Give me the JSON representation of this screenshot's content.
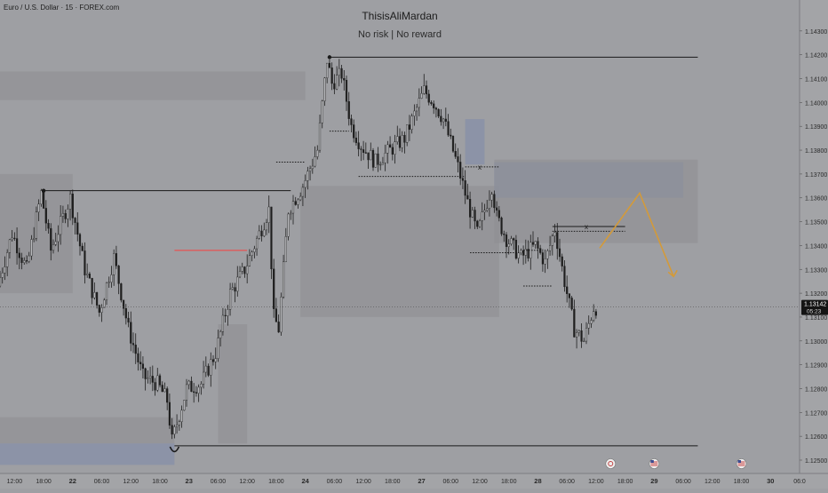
{
  "header": {
    "symbol": "Euro / U.S. Dollar · 15 · FOREX.com",
    "author": "ThisisAliMardan",
    "subtitle": "No risk | No reward"
  },
  "price_tag": {
    "price": "1.13142",
    "countdown": "05:23"
  },
  "colors": {
    "background": "#9e9fa3",
    "zone_gray": "#8f9093",
    "zone_blue": "#8890a8",
    "candle": "#1e1e1e",
    "arrow": "#d39a3a",
    "red_line": "#e05a5a"
  },
  "events": [
    {
      "icon": "economic-event-icon",
      "day_label": "28"
    },
    {
      "icon": "us-flag-event-icon",
      "day_label": "29"
    },
    {
      "icon": "us-flag-event-icon",
      "day_label": "30"
    }
  ],
  "chart_data": {
    "type": "candlestick",
    "title": "",
    "y_axis": {
      "min": 1.125,
      "max": 1.144,
      "ticks": [
        "1.14300",
        "1.14200",
        "1.14100",
        "1.14000",
        "1.13900",
        "1.13800",
        "1.13700",
        "1.13600",
        "1.13500",
        "1.13400",
        "1.13300",
        "1.13200",
        "1.13100",
        "1.13000",
        "1.12900",
        "1.12800",
        "1.12700",
        "1.12600",
        "1.12500"
      ]
    },
    "x_axis": {
      "start": "21 09:00",
      "end": "30 06:00",
      "ticks": [
        {
          "label": "12:00",
          "t": "21 12:00"
        },
        {
          "label": "18:00",
          "t": "21 18:00"
        },
        {
          "label": "22",
          "t": "22 00:00"
        },
        {
          "label": "06:00",
          "t": "22 06:00"
        },
        {
          "label": "12:00",
          "t": "22 12:00"
        },
        {
          "label": "18:00",
          "t": "22 18:00"
        },
        {
          "label": "23",
          "t": "23 00:00"
        },
        {
          "label": "06:00",
          "t": "23 06:00"
        },
        {
          "label": "12:00",
          "t": "23 12:00"
        },
        {
          "label": "18:00",
          "t": "23 18:00"
        },
        {
          "label": "24",
          "t": "24 00:00"
        },
        {
          "label": "06:00",
          "t": "24 06:00"
        },
        {
          "label": "12:00",
          "t": "24 12:00"
        },
        {
          "label": "18:00",
          "t": "24 18:00"
        },
        {
          "label": "27",
          "t": "27 00:00"
        },
        {
          "label": "06:00",
          "t": "27 06:00"
        },
        {
          "label": "12:00",
          "t": "27 12:00"
        },
        {
          "label": "18:00",
          "t": "27 18:00"
        },
        {
          "label": "28",
          "t": "28 00:00"
        },
        {
          "label": "06:00",
          "t": "28 06:00"
        },
        {
          "label": "12:00",
          "t": "28 12:00"
        },
        {
          "label": "18:00",
          "t": "28 18:00"
        },
        {
          "label": "29",
          "t": "29 00:00"
        },
        {
          "label": "06:00",
          "t": "29 06:00"
        },
        {
          "label": "12:00",
          "t": "29 12:00"
        },
        {
          "label": "18:00",
          "t": "29 18:00"
        },
        {
          "label": "30",
          "t": "30 00:00"
        },
        {
          "label": "06:0",
          "t": "30 06:00"
        }
      ]
    },
    "price_path": [
      [
        "21 09:00",
        1.1323
      ],
      [
        "21 12:00",
        1.1345
      ],
      [
        "21 15:00",
        1.133
      ],
      [
        "21 18:00",
        1.1362
      ],
      [
        "21 20:00",
        1.1338
      ],
      [
        "22 00:00",
        1.136
      ],
      [
        "22 03:00",
        1.133
      ],
      [
        "22 06:00",
        1.1312
      ],
      [
        "22 09:00",
        1.1335
      ],
      [
        "22 12:00",
        1.1305
      ],
      [
        "22 15:00",
        1.1285
      ],
      [
        "22 18:00",
        1.1282
      ],
      [
        "22 20:00",
        1.1275
      ],
      [
        "22 21:00",
        1.1258
      ],
      [
        "23 00:00",
        1.128
      ],
      [
        "23 03:00",
        1.1282
      ],
      [
        "23 06:00",
        1.1295
      ],
      [
        "23 09:00",
        1.132
      ],
      [
        "23 12:00",
        1.133
      ],
      [
        "23 15:00",
        1.1345
      ],
      [
        "23 17:00",
        1.1355
      ],
      [
        "23 18:00",
        1.131
      ],
      [
        "23 19:00",
        1.1305
      ],
      [
        "23 21:00",
        1.1355
      ],
      [
        "24 00:00",
        1.1365
      ],
      [
        "24 03:00",
        1.138
      ],
      [
        "24 05:00",
        1.1418
      ],
      [
        "24 06:00",
        1.1408
      ],
      [
        "24 08:00",
        1.1412
      ],
      [
        "24 10:00",
        1.139
      ],
      [
        "24 12:00",
        1.1382
      ],
      [
        "24 15:00",
        1.1375
      ],
      [
        "24 18:00",
        1.138
      ],
      [
        "24 21:00",
        1.1385
      ],
      [
        "24 23:00",
        1.1395
      ],
      [
        "27 01:00",
        1.1405
      ],
      [
        "27 03:00",
        1.14
      ],
      [
        "27 05:00",
        1.1393
      ],
      [
        "27 08:00",
        1.1373
      ],
      [
        "27 10:00",
        1.1358
      ],
      [
        "27 12:00",
        1.1345
      ],
      [
        "27 15:00",
        1.1365
      ],
      [
        "27 16:00",
        1.1352
      ],
      [
        "27 18:00",
        1.1343
      ],
      [
        "27 21:00",
        1.1335
      ],
      [
        "28 00:00",
        1.134
      ],
      [
        "28 02:00",
        1.1333
      ],
      [
        "28 04:00",
        1.1347
      ],
      [
        "28 06:00",
        1.1325
      ],
      [
        "28 08:00",
        1.1305
      ],
      [
        "28 10:00",
        1.13
      ],
      [
        "28 12:00",
        1.1314
      ]
    ],
    "last_price": 1.13142,
    "zones": [
      {
        "style": "gray",
        "t1": "21 09:00",
        "t2": "24 00:00",
        "y1": 1.1413,
        "y2": 1.1401
      },
      {
        "style": "gray",
        "t1": "21 09:00",
        "t2": "22 00:00",
        "y1": 1.137,
        "y2": 1.132
      },
      {
        "style": "gray",
        "t1": "23 06:00",
        "t2": "23 12:00",
        "y1": 1.1307,
        "y2": 1.1257
      },
      {
        "style": "gray",
        "t1": "21 09:00",
        "t2": "22 21:00",
        "y1": 1.1268,
        "y2": 1.1257
      },
      {
        "style": "blue",
        "t1": "21 09:00",
        "t2": "22 21:00",
        "y1": 1.1257,
        "y2": 1.1248
      },
      {
        "style": "gray",
        "t1": "23 23:00",
        "t2": "27 16:00",
        "y1": 1.1365,
        "y2": 1.131
      },
      {
        "style": "blue",
        "t1": "27 09:00",
        "t2": "27 13:00",
        "y1": 1.1393,
        "y2": 1.1374
      },
      {
        "style": "blue",
        "t1": "27 15:00",
        "t2": "29 06:00",
        "y1": 1.1375,
        "y2": 1.136
      },
      {
        "style": "gray",
        "t1": "27 15:00",
        "t2": "29 09:00",
        "y1": 1.1376,
        "y2": 1.1341
      }
    ],
    "lines": [
      {
        "style": "solid",
        "t1": "24 05:00",
        "t2": "29 09:00",
        "y": 1.1419
      },
      {
        "style": "solid",
        "t1": "21 18:00",
        "t2": "23 21:00",
        "y": 1.1363
      },
      {
        "style": "solid",
        "t1": "22 21:00",
        "t2": "29 09:00",
        "y": 1.1256
      },
      {
        "style": "red",
        "t1": "22 21:00",
        "t2": "23 12:00",
        "y": 1.1338
      },
      {
        "style": "dotted",
        "t1": "23 18:00",
        "t2": "24 00:00",
        "y": 1.1375
      },
      {
        "style": "dotted",
        "t1": "24 05:00",
        "t2": "24 09:00",
        "y": 1.1388
      },
      {
        "style": "dotted",
        "t1": "24 11:00",
        "t2": "27 09:00",
        "y": 1.1369
      },
      {
        "style": "dotted",
        "t1": "27 09:00",
        "t2": "27 16:00",
        "y": 1.1373
      },
      {
        "style": "dotted",
        "t1": "27 10:00",
        "t2": "27 20:00",
        "y": 1.1337
      },
      {
        "style": "dotted",
        "t1": "27 21:00",
        "t2": "28 00:00",
        "y": 1.1338
      },
      {
        "style": "dotted",
        "t1": "27 21:00",
        "t2": "28 03:00",
        "y": 1.1323
      },
      {
        "style": "dotted",
        "t1": "28 03:00",
        "t2": "28 18:00",
        "y": 1.1346
      },
      {
        "style": "solid",
        "t1": "28 03:00",
        "t2": "28 18:00",
        "y": 1.1348
      }
    ],
    "markers": [
      {
        "label": "x",
        "t": "27 12:00",
        "y": 1.1373
      },
      {
        "label": "x",
        "t": "28 10:00",
        "y": 1.1348
      }
    ],
    "projection_arrow": {
      "points": [
        [
          "28 21:00",
          1.1362
        ],
        [
          "29 04:00",
          1.1327
        ]
      ]
    }
  }
}
